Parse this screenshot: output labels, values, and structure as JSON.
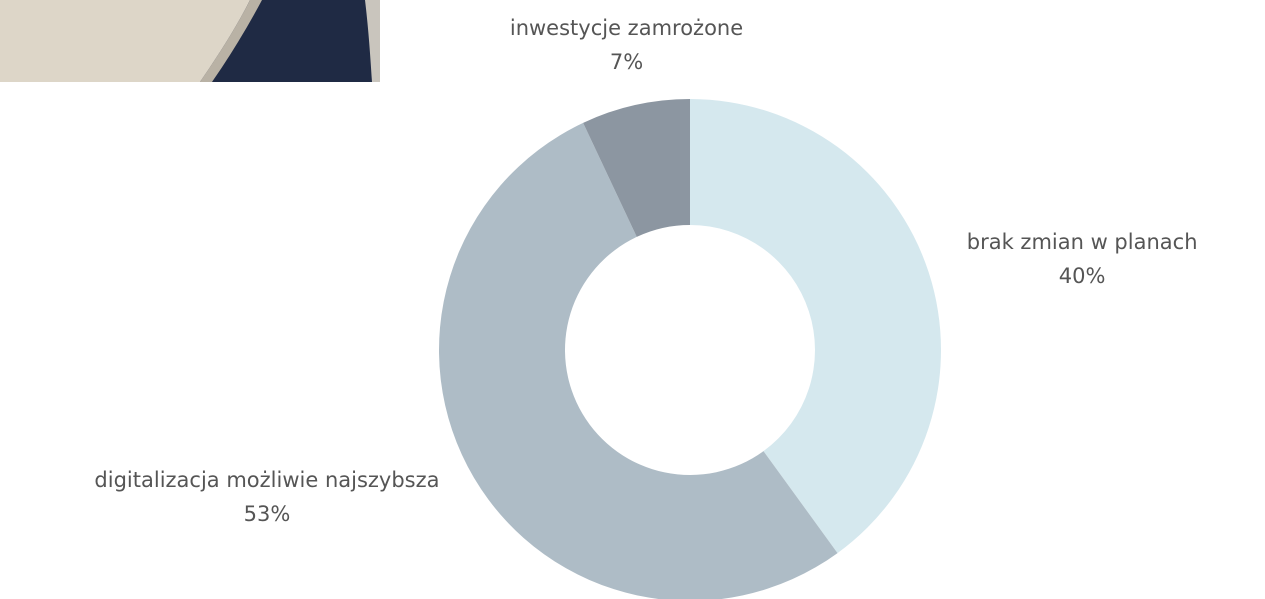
{
  "chart_data": {
    "type": "donut",
    "categories": [
      "brak zmian w planach",
      "digitalizacja możliwie najszybsza",
      "inwestycje zamrożone"
    ],
    "values": [
      40,
      53,
      7
    ],
    "value_labels": [
      "40%",
      "53%",
      "7%"
    ],
    "colors": [
      "#d5e8ee",
      "#aebcc6",
      "#8c96a1"
    ]
  }
}
